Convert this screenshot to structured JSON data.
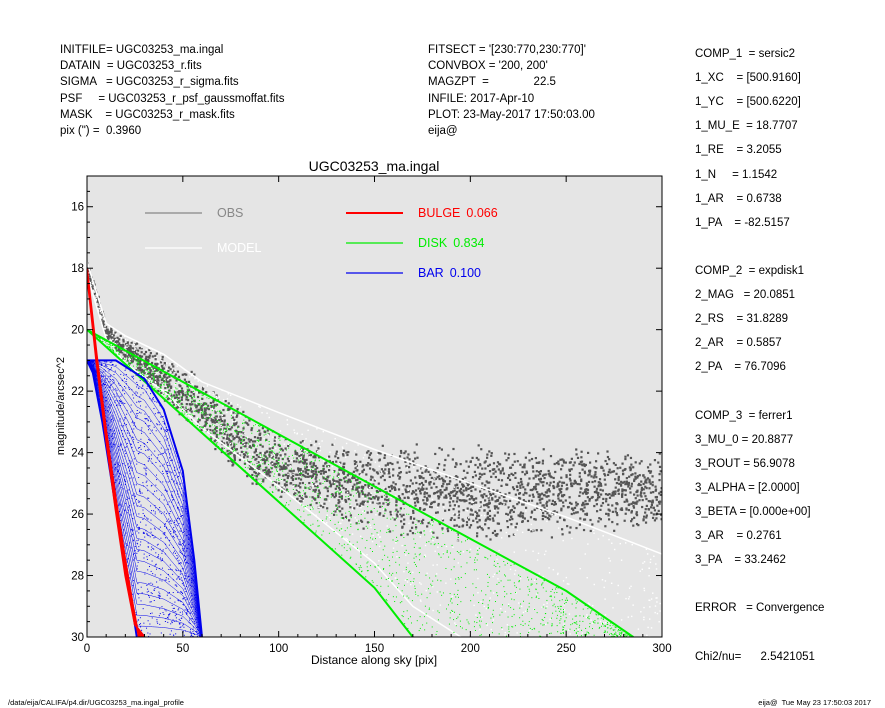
{
  "header_left": [
    "INITFILE= UGC03253_ma.ingal",
    "DATAIN  = UGC03253_r.fits",
    "SIGMA   = UGC03253_r_sigma.fits",
    "PSF     = UGC03253_r_psf_gaussmoffat.fits",
    "MASK    = UGC03253_r_mask.fits",
    "pix (\") =  0.3960"
  ],
  "header_mid": [
    "FITSECT = '[230:770,230:770]'",
    "CONVBOX = '200, 200'",
    "MAGZPT  =              22.5",
    "INFILE: 2017-Apr-10",
    "PLOT: 23-May-2017 17:50:03.00",
    "eija@"
  ],
  "params": [
    "COMP_1  = sersic2",
    "1_XC    = [500.9160]",
    "1_YC    = [500.6220]",
    "1_MU_E  = 18.7707",
    "1_RE    = 3.2055",
    "1_N     = 1.1542",
    "1_AR    = 0.6738",
    "1_PA    = -82.5157",
    "",
    "COMP_2  = expdisk1",
    "2_MAG   = 20.0851",
    "2_RS    = 31.8289",
    "2_AR    = 0.5857",
    "2_PA    = 76.7096",
    "",
    "COMP_3  = ferrer1",
    "3_MU_0 = 20.8877",
    "3_ROUT = 56.9078",
    "3_ALPHA = [2.0000]",
    "3_BETA = [0.000e+00]",
    "3_AR    = 0.2761",
    "3_PA    = 33.2462",
    "",
    "ERROR   = Convergence",
    "",
    "Chi2/nu=      2.5421051"
  ],
  "footer_left": "/data/eija/CALIFA/p4.dir/UGC03253_ma.ingal_profile",
  "footer_right": "eija@  Tue May 23 17:50:03 2017",
  "colors": {
    "panel_bg": "#e5e5e5",
    "obs": "#555555",
    "obs_legend": "#888888",
    "model": "#ffffff",
    "bulge": "#ff0000",
    "disk": "#00ee00",
    "bar": "#0000ee"
  },
  "chart_data": {
    "type": "scatter",
    "title": "UGC03253_ma.ingal",
    "xlabel": "Distance along sky [pix]",
    "ylabel": "magnitude/arcsec^2",
    "xlim": [
      0,
      300
    ],
    "ylim": [
      30,
      15
    ],
    "y_inverted": true,
    "xticks": [
      0,
      50,
      100,
      150,
      200,
      250,
      300
    ],
    "yticks": [
      16,
      18,
      20,
      22,
      24,
      26,
      28,
      30
    ],
    "grid": false,
    "legend": [
      {
        "label": "OBS",
        "value": "",
        "color_key": "obs_legend"
      },
      {
        "label": "MODEL",
        "value": "",
        "color_key": "model"
      },
      {
        "label": "BULGE",
        "value": "0.066",
        "color_key": "bulge"
      },
      {
        "label": "DISK",
        "value": "0.834",
        "color_key": "disk"
      },
      {
        "label": "BAR",
        "value": "0.100",
        "color_key": "bar"
      }
    ],
    "series": [
      {
        "name": "OBS",
        "color_key": "obs",
        "upper_envelope": [
          [
            0,
            17.8
          ],
          [
            5,
            18.6
          ],
          [
            10,
            19.8
          ],
          [
            20,
            20.2
          ],
          [
            40,
            20.8
          ],
          [
            60,
            21.5
          ],
          [
            80,
            22.5
          ],
          [
            100,
            23.3
          ],
          [
            130,
            23.6
          ],
          [
            160,
            23.7
          ],
          [
            200,
            23.7
          ],
          [
            250,
            23.8
          ],
          [
            300,
            23.9
          ]
        ],
        "lower_envelope": [
          [
            0,
            18.2
          ],
          [
            10,
            20.3
          ],
          [
            20,
            21.2
          ],
          [
            40,
            22.3
          ],
          [
            60,
            23.6
          ],
          [
            80,
            24.8
          ],
          [
            100,
            25.6
          ],
          [
            130,
            26.3
          ],
          [
            160,
            26.8
          ],
          [
            200,
            27.0
          ],
          [
            250,
            26.8
          ],
          [
            300,
            26.5
          ]
        ]
      },
      {
        "name": "MODEL",
        "color_key": "model",
        "upper_envelope": [
          [
            0,
            17.8
          ],
          [
            10,
            19.8
          ],
          [
            20,
            20.2
          ],
          [
            40,
            20.8
          ],
          [
            60,
            21.7
          ],
          [
            100,
            22.7
          ],
          [
            150,
            23.9
          ],
          [
            200,
            25.0
          ],
          [
            250,
            26.1
          ],
          [
            300,
            27.3
          ]
        ],
        "lower_envelope": [
          [
            0,
            18.2
          ],
          [
            10,
            20.3
          ],
          [
            20,
            21.1
          ],
          [
            40,
            22.0
          ],
          [
            60,
            23.2
          ],
          [
            100,
            25.1
          ],
          [
            150,
            27.6
          ],
          [
            170,
            29.0
          ],
          [
            195,
            30.0
          ]
        ]
      },
      {
        "name": "BULGE",
        "color_key": "bulge",
        "upper_envelope": [
          [
            0,
            18.0
          ],
          [
            5,
            20.8
          ],
          [
            10,
            23.3
          ],
          [
            15,
            25.5
          ],
          [
            20,
            27.5
          ],
          [
            24,
            29.0
          ],
          [
            27,
            30.0
          ]
        ],
        "lower_envelope": [
          [
            0,
            18.2
          ],
          [
            5,
            21.1
          ],
          [
            10,
            23.6
          ],
          [
            15,
            25.9
          ],
          [
            20,
            28.0
          ],
          [
            25,
            29.6
          ],
          [
            30,
            30.0
          ]
        ]
      },
      {
        "name": "DISK",
        "color_key": "disk",
        "upper_envelope": [
          [
            0,
            20.0
          ],
          [
            50,
            21.7
          ],
          [
            100,
            23.4
          ],
          [
            150,
            25.1
          ],
          [
            200,
            26.8
          ],
          [
            250,
            28.5
          ],
          [
            285,
            30.0
          ]
        ],
        "lower_envelope": [
          [
            0,
            20.0
          ],
          [
            50,
            22.8
          ],
          [
            100,
            25.6
          ],
          [
            150,
            28.4
          ],
          [
            170,
            30.0
          ]
        ]
      },
      {
        "name": "BAR",
        "color_key": "bar",
        "upper_envelope": [
          [
            0,
            21.0
          ],
          [
            15,
            21.0
          ],
          [
            30,
            21.6
          ],
          [
            40,
            22.6
          ],
          [
            50,
            24.6
          ],
          [
            56,
            27.5
          ],
          [
            60,
            30.0
          ]
        ],
        "lower_envelope": [
          [
            0,
            21.0
          ],
          [
            3,
            21.4
          ],
          [
            8,
            23.0
          ],
          [
            12,
            24.6
          ],
          [
            17,
            26.6
          ],
          [
            22,
            28.4
          ],
          [
            26,
            30.0
          ]
        ]
      }
    ]
  }
}
